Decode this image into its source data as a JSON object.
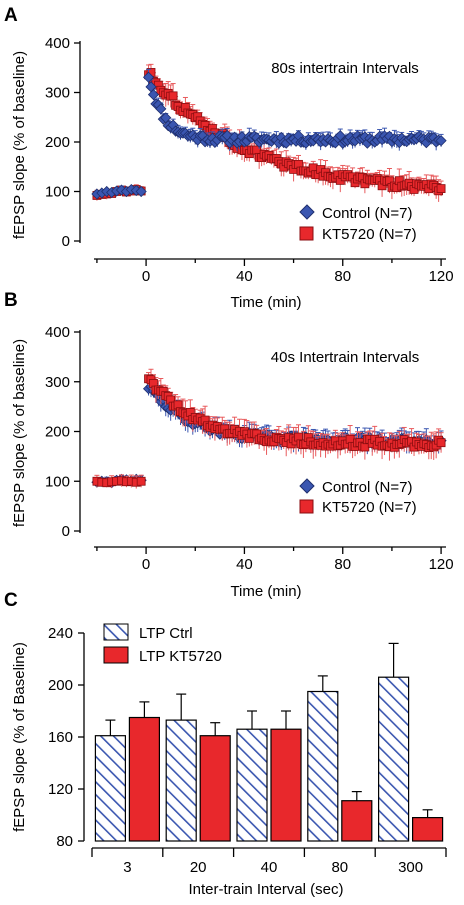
{
  "colors": {
    "control": "#3a56b0",
    "control_edge": "#1f2f6e",
    "kt": "#e8282c",
    "kt_edge": "#8a0d10",
    "kt_err": "#e85a5c"
  },
  "chart_data": [
    {
      "panel": "A",
      "type": "scatter",
      "annotation": "80s intertrain Intervals",
      "xlabel": "Time (min)",
      "ylabel": "fEPSP slope (% of baseline)",
      "xlim": [
        -22,
        122
      ],
      "ylim": [
        0,
        400
      ],
      "xticks": [
        0,
        40,
        80,
        120
      ],
      "yticks": [
        0,
        100,
        200,
        300,
        400
      ],
      "legend_position": "bottom-right",
      "series": [
        {
          "name": "Control (N=7)",
          "marker": "diamond",
          "baseline": [
            [
              -20,
              95
            ],
            [
              -18,
              97
            ],
            [
              -16,
              100
            ],
            [
              -14,
              98
            ],
            [
              -12,
              101
            ],
            [
              -10,
              103
            ],
            [
              -8,
              100
            ],
            [
              -6,
              104
            ],
            [
              -4,
              102
            ],
            [
              -2,
              100
            ]
          ],
          "decay": {
            "t_start": 1,
            "t_end": 120,
            "step": 1,
            "peak": 335,
            "plateau": 205,
            "tau": 6
          },
          "error_bar": 12
        },
        {
          "name": "KT5720 (N=7)",
          "marker": "square",
          "baseline": [
            [
              -20,
              92
            ],
            [
              -18,
              94
            ],
            [
              -16,
              95
            ],
            [
              -14,
              96
            ],
            [
              -12,
              100
            ],
            [
              -10,
              103
            ],
            [
              -8,
              99
            ],
            [
              -6,
              101
            ],
            [
              -4,
              104
            ],
            [
              -2,
              101
            ]
          ],
          "decay": {
            "t_start": 1,
            "t_end": 120,
            "step": 1,
            "peak": 340,
            "plateau": 95,
            "tau": 40
          },
          "error_bar": 18
        }
      ]
    },
    {
      "panel": "B",
      "type": "scatter",
      "annotation": "40s Intertrain Intervals",
      "xlabel": "Time (min)",
      "ylabel": "fEPSP slope (% of baseline)",
      "xlim": [
        -22,
        122
      ],
      "ylim": [
        0,
        400
      ],
      "xticks": [
        0,
        40,
        80,
        120
      ],
      "yticks": [
        0,
        100,
        200,
        300,
        400
      ],
      "legend_position": "bottom-right",
      "series": [
        {
          "name": "Control (N=7)",
          "marker": "diamond",
          "baseline": [
            [
              -20,
              98
            ],
            [
              -18,
              100
            ],
            [
              -16,
              99
            ],
            [
              -14,
              97
            ],
            [
              -12,
              102
            ],
            [
              -10,
              104
            ],
            [
              -8,
              103
            ],
            [
              -6,
              101
            ],
            [
              -4,
              104
            ],
            [
              -2,
              102
            ]
          ],
          "decay": {
            "t_start": 1,
            "t_end": 120,
            "step": 1,
            "peak": 290,
            "plateau": 180,
            "tau": 18
          },
          "error_bar": 16
        },
        {
          "name": "KT5720 (N=7)",
          "marker": "square",
          "baseline": [
            [
              -20,
              100
            ],
            [
              -18,
              98
            ],
            [
              -16,
              97
            ],
            [
              -14,
              99
            ],
            [
              -12,
              100
            ],
            [
              -10,
              101
            ],
            [
              -8,
              99
            ],
            [
              -6,
              100
            ],
            [
              -4,
              98
            ],
            [
              -2,
              100
            ]
          ],
          "decay": {
            "t_start": 1,
            "t_end": 120,
            "step": 1,
            "peak": 310,
            "plateau": 175,
            "tau": 20
          },
          "error_bar": 20
        }
      ]
    },
    {
      "panel": "C",
      "type": "bar",
      "xlabel": "Inter-train Interval (sec)",
      "ylabel": "fEPSP slope (% of Baseline)",
      "ylim": [
        80,
        240
      ],
      "yticks": [
        80,
        120,
        160,
        200,
        240
      ],
      "categories": [
        "3",
        "20",
        "40",
        "80",
        "300"
      ],
      "legend_position": "top-left",
      "series": [
        {
          "name": "LTP Ctrl",
          "pattern": "hatched",
          "values": [
            161,
            173,
            166,
            195,
            206
          ],
          "errors": [
            12,
            20,
            14,
            12,
            26
          ]
        },
        {
          "name": "LTP KT5720",
          "pattern": "solid",
          "values": [
            175,
            161,
            166,
            111,
            98
          ],
          "errors": [
            12,
            10,
            14,
            7,
            6
          ]
        }
      ]
    }
  ]
}
